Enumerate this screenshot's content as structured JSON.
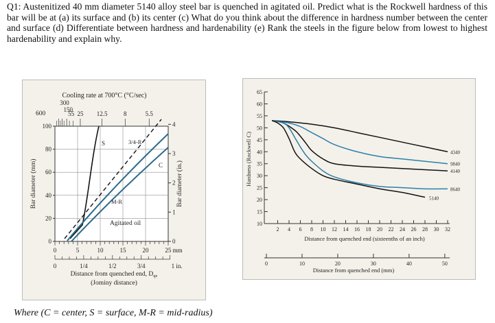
{
  "question": "Q1: Austenitized 40 mm diameter 5140 alloy steel bar is quenched in agitated oil. Predict what is the Rockwell hardness of this bar will be at (a) its surface and (b) its center (c) What do you think about the difference in hardness number between the center and surface (d) Differentiate between hardness and hardenability (e) Rank the steels in the figure below from lowest to highest hardenability and explain why.",
  "footnote": "Where (C = center, S = surface, M-R = mid-radius)",
  "left_chart": {
    "top_title": "Cooling rate at 700°C (°C/sec)",
    "cooling_rate_ticks": [
      "300",
      "150",
      "55",
      "25",
      "12.5",
      "8",
      "5.5"
    ],
    "y_left_label": "Bar diameter (mm)",
    "y_left_ticks": [
      "0",
      "20",
      "40",
      "60",
      "80",
      "100"
    ],
    "y_left_top": "600",
    "y_right_label": "Bar diameter (in.)",
    "y_right_ticks": [
      "0",
      "1",
      "2",
      "3",
      "4"
    ],
    "x_mm_ticks": [
      "0",
      "5",
      "10",
      "15",
      "20",
      "25 mm"
    ],
    "x_in_ticks": [
      "0",
      "1/4",
      "1/2",
      "3/4",
      "1 in."
    ],
    "x_label_line1": "Distance from quenched end, D",
    "x_label_sub": "qe",
    "x_label_line2": "(Jominy distance)",
    "medium_label": "Agitated oil",
    "curve_labels": {
      "surface": "S",
      "three_quarter": "3/4-R",
      "mid_radius": "M-R",
      "center": "C"
    },
    "colors": {
      "background": "#f4f1ea",
      "curve_blue": "#2c6a8a",
      "curve_black": "#111111"
    }
  },
  "chart_data": {
    "type": "line",
    "xlabel": "Distance from quenched end (sixteenths of an inch)",
    "ylabel": "Hardness (Rockwell C)",
    "x_ticks": [
      2,
      4,
      6,
      8,
      10,
      12,
      14,
      16,
      18,
      20,
      22,
      24,
      26,
      28,
      30,
      32
    ],
    "y_ticks": [
      10,
      15,
      20,
      25,
      30,
      35,
      40,
      45,
      50,
      55,
      60,
      65
    ],
    "xlim": [
      0,
      32
    ],
    "ylim": [
      10,
      65
    ],
    "secondary_xlabel": "Distance from quenched end (mm)",
    "secondary_x_ticks": [
      0,
      10,
      20,
      30,
      40,
      50
    ],
    "series": [
      {
        "name": "4340",
        "color": "#111111",
        "x": [
          1,
          4,
          8,
          12,
          16,
          20,
          24,
          28,
          32
        ],
        "values": [
          53,
          52.5,
          51.5,
          50,
          48,
          46,
          44,
          42,
          40
        ]
      },
      {
        "name": "9840",
        "color": "#2c7fa8",
        "x": [
          1,
          4,
          6,
          8,
          10,
          12,
          16,
          20,
          24,
          28,
          32
        ],
        "values": [
          53,
          52,
          50.5,
          48,
          45.5,
          43,
          40,
          38,
          37,
          36,
          35
        ]
      },
      {
        "name": "4140",
        "color": "#111111",
        "x": [
          1,
          3,
          5,
          6,
          7,
          8,
          10,
          12,
          16,
          20,
          24,
          28,
          32
        ],
        "values": [
          53,
          52,
          49,
          46.5,
          43.5,
          40.5,
          37,
          35,
          34,
          33.5,
          33,
          32.5,
          32
        ]
      },
      {
        "name": "8640",
        "color": "#2c7fa8",
        "x": [
          1,
          3,
          4,
          5,
          6,
          7,
          8,
          10,
          12,
          16,
          20,
          24,
          28,
          32
        ],
        "values": [
          53,
          52,
          50,
          46,
          42,
          38.5,
          36,
          32,
          29.5,
          27,
          25.5,
          25,
          24.5,
          24.5
        ]
      },
      {
        "name": "5140",
        "color": "#111111",
        "x": [
          1,
          2,
          3,
          4,
          5,
          6,
          8,
          10,
          12,
          16,
          20,
          24,
          28
        ],
        "values": [
          53,
          52,
          50,
          45.5,
          40,
          37,
          33,
          30,
          28.5,
          26.5,
          24.5,
          23,
          21
        ]
      }
    ],
    "colors": {
      "background": "#f4f1ea"
    }
  }
}
